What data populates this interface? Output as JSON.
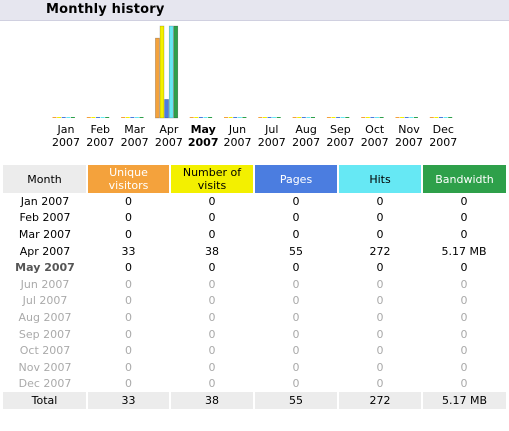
{
  "section": {
    "title": "Monthly history"
  },
  "months": [
    {
      "m": "Jan",
      "y": "2007"
    },
    {
      "m": "Feb",
      "y": "2007"
    },
    {
      "m": "Mar",
      "y": "2007"
    },
    {
      "m": "Apr",
      "y": "2007"
    },
    {
      "m": "May",
      "y": "2007"
    },
    {
      "m": "Jun",
      "y": "2007"
    },
    {
      "m": "Jul",
      "y": "2007"
    },
    {
      "m": "Aug",
      "y": "2007"
    },
    {
      "m": "Sep",
      "y": "2007"
    },
    {
      "m": "Oct",
      "y": "2007"
    },
    {
      "m": "Nov",
      "y": "2007"
    },
    {
      "m": "Dec",
      "y": "2007"
    }
  ],
  "current_month_index": 4,
  "headers": {
    "month": "Month",
    "unique": "Unique visitors",
    "visits": "Number of visits",
    "pages": "Pages",
    "hits": "Hits",
    "bandwidth": "Bandwidth"
  },
  "rows": [
    {
      "month": "Jan 2007",
      "unique": "0",
      "visits": "0",
      "pages": "0",
      "hits": "0",
      "bandwidth": "0"
    },
    {
      "month": "Feb 2007",
      "unique": "0",
      "visits": "0",
      "pages": "0",
      "hits": "0",
      "bandwidth": "0"
    },
    {
      "month": "Mar 2007",
      "unique": "0",
      "visits": "0",
      "pages": "0",
      "hits": "0",
      "bandwidth": "0"
    },
    {
      "month": "Apr 2007",
      "unique": "33",
      "visits": "38",
      "pages": "55",
      "hits": "272",
      "bandwidth": "5.17 MB"
    },
    {
      "month": "May 2007",
      "unique": "0",
      "visits": "0",
      "pages": "0",
      "hits": "0",
      "bandwidth": "0"
    },
    {
      "month": "Jun 2007",
      "unique": "0",
      "visits": "0",
      "pages": "0",
      "hits": "0",
      "bandwidth": "0"
    },
    {
      "month": "Jul 2007",
      "unique": "0",
      "visits": "0",
      "pages": "0",
      "hits": "0",
      "bandwidth": "0"
    },
    {
      "month": "Aug 2007",
      "unique": "0",
      "visits": "0",
      "pages": "0",
      "hits": "0",
      "bandwidth": "0"
    },
    {
      "month": "Sep 2007",
      "unique": "0",
      "visits": "0",
      "pages": "0",
      "hits": "0",
      "bandwidth": "0"
    },
    {
      "month": "Oct 2007",
      "unique": "0",
      "visits": "0",
      "pages": "0",
      "hits": "0",
      "bandwidth": "0"
    },
    {
      "month": "Nov 2007",
      "unique": "0",
      "visits": "0",
      "pages": "0",
      "hits": "0",
      "bandwidth": "0"
    },
    {
      "month": "Dec 2007",
      "unique": "0",
      "visits": "0",
      "pages": "0",
      "hits": "0",
      "bandwidth": "0"
    }
  ],
  "total": {
    "label": "Total",
    "unique": "33",
    "visits": "38",
    "pages": "55",
    "hits": "272",
    "bandwidth": "5.17 MB"
  },
  "colors": {
    "unique": "#f4a23c",
    "visits": "#f3f000",
    "pages": "#4b7de0",
    "hits": "#66e8f4",
    "bandwidth": "#2ea04a",
    "header_bg": "#e6e6ef",
    "row_header_bg": "#ececec"
  },
  "chart_data": {
    "type": "bar",
    "categories": [
      "Jan 2007",
      "Feb 2007",
      "Mar 2007",
      "Apr 2007",
      "May 2007",
      "Jun 2007",
      "Jul 2007",
      "Aug 2007",
      "Sep 2007",
      "Oct 2007",
      "Nov 2007",
      "Dec 2007"
    ],
    "series": [
      {
        "name": "Unique visitors",
        "values": [
          0,
          0,
          0,
          33,
          0,
          0,
          0,
          0,
          0,
          0,
          0,
          0
        ]
      },
      {
        "name": "Number of visits",
        "values": [
          0,
          0,
          0,
          38,
          0,
          0,
          0,
          0,
          0,
          0,
          0,
          0
        ]
      },
      {
        "name": "Pages",
        "values": [
          0,
          0,
          0,
          55,
          0,
          0,
          0,
          0,
          0,
          0,
          0,
          0
        ]
      },
      {
        "name": "Hits",
        "values": [
          0,
          0,
          0,
          272,
          0,
          0,
          0,
          0,
          0,
          0,
          0,
          0
        ]
      },
      {
        "name": "Bandwidth",
        "values": [
          0,
          0,
          0,
          5.17,
          0,
          0,
          0,
          0,
          0,
          0,
          0,
          0
        ]
      }
    ],
    "grid": false
  }
}
